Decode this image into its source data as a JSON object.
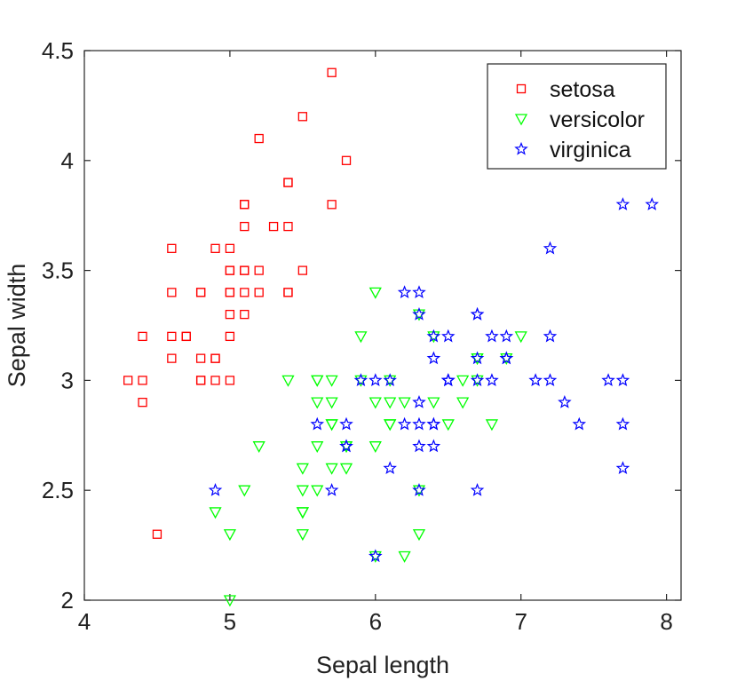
{
  "chart_data": {
    "type": "scatter",
    "title": "",
    "xlabel": "Sepal length",
    "ylabel": "Sepal width",
    "xlim": [
      4,
      8.1
    ],
    "ylim": [
      2,
      4.5
    ],
    "xticks": [
      4,
      5,
      6,
      7,
      8
    ],
    "yticks": [
      2,
      2.5,
      3,
      3.5,
      4,
      4.5
    ],
    "xtick_labels": [
      "4",
      "5",
      "6",
      "7",
      "8"
    ],
    "ytick_labels": [
      "2",
      "2.5",
      "3",
      "3.5",
      "4",
      "4.5"
    ],
    "grid": false,
    "legend_position": "top-right",
    "series": [
      {
        "name": "setosa",
        "marker": "square",
        "color": "#ff0000",
        "points": [
          [
            5.1,
            3.5
          ],
          [
            4.9,
            3.0
          ],
          [
            4.7,
            3.2
          ],
          [
            4.6,
            3.1
          ],
          [
            5.0,
            3.6
          ],
          [
            5.4,
            3.9
          ],
          [
            4.6,
            3.4
          ],
          [
            5.0,
            3.4
          ],
          [
            4.4,
            2.9
          ],
          [
            4.9,
            3.1
          ],
          [
            5.4,
            3.7
          ],
          [
            4.8,
            3.4
          ],
          [
            4.8,
            3.0
          ],
          [
            4.3,
            3.0
          ],
          [
            5.8,
            4.0
          ],
          [
            5.7,
            4.4
          ],
          [
            5.4,
            3.9
          ],
          [
            5.1,
            3.5
          ],
          [
            5.7,
            3.8
          ],
          [
            5.1,
            3.8
          ],
          [
            5.4,
            3.4
          ],
          [
            5.1,
            3.7
          ],
          [
            4.6,
            3.6
          ],
          [
            5.1,
            3.3
          ],
          [
            4.8,
            3.4
          ],
          [
            5.0,
            3.0
          ],
          [
            5.0,
            3.4
          ],
          [
            5.2,
            3.5
          ],
          [
            5.2,
            3.4
          ],
          [
            4.7,
            3.2
          ],
          [
            4.8,
            3.1
          ],
          [
            5.4,
            3.4
          ],
          [
            5.2,
            4.1
          ],
          [
            5.5,
            4.2
          ],
          [
            4.9,
            3.1
          ],
          [
            5.0,
            3.2
          ],
          [
            5.5,
            3.5
          ],
          [
            4.9,
            3.6
          ],
          [
            4.4,
            3.0
          ],
          [
            5.1,
            3.4
          ],
          [
            5.0,
            3.5
          ],
          [
            4.5,
            2.3
          ],
          [
            4.4,
            3.2
          ],
          [
            5.0,
            3.5
          ],
          [
            5.1,
            3.8
          ],
          [
            4.8,
            3.0
          ],
          [
            5.1,
            3.8
          ],
          [
            4.6,
            3.2
          ],
          [
            5.3,
            3.7
          ],
          [
            5.0,
            3.3
          ]
        ]
      },
      {
        "name": "versicolor",
        "marker": "triangle-down",
        "color": "#00ff00",
        "points": [
          [
            7.0,
            3.2
          ],
          [
            6.4,
            3.2
          ],
          [
            6.9,
            3.1
          ],
          [
            5.5,
            2.3
          ],
          [
            6.5,
            2.8
          ],
          [
            5.7,
            2.8
          ],
          [
            6.3,
            3.3
          ],
          [
            4.9,
            2.4
          ],
          [
            6.6,
            2.9
          ],
          [
            5.2,
            2.7
          ],
          [
            5.0,
            2.0
          ],
          [
            5.9,
            3.0
          ],
          [
            6.0,
            2.2
          ],
          [
            6.1,
            2.9
          ],
          [
            5.6,
            2.9
          ],
          [
            6.7,
            3.1
          ],
          [
            5.6,
            3.0
          ],
          [
            5.8,
            2.7
          ],
          [
            6.2,
            2.2
          ],
          [
            5.6,
            2.5
          ],
          [
            5.9,
            3.2
          ],
          [
            6.1,
            2.8
          ],
          [
            6.3,
            2.5
          ],
          [
            6.1,
            2.8
          ],
          [
            6.4,
            2.9
          ],
          [
            6.6,
            3.0
          ],
          [
            6.8,
            2.8
          ],
          [
            6.7,
            3.0
          ],
          [
            6.0,
            2.9
          ],
          [
            5.7,
            2.6
          ],
          [
            5.5,
            2.4
          ],
          [
            5.5,
            2.4
          ],
          [
            5.8,
            2.7
          ],
          [
            6.0,
            2.7
          ],
          [
            5.4,
            3.0
          ],
          [
            6.0,
            3.4
          ],
          [
            6.7,
            3.1
          ],
          [
            6.3,
            2.3
          ],
          [
            5.6,
            3.0
          ],
          [
            5.5,
            2.5
          ],
          [
            5.5,
            2.6
          ],
          [
            6.1,
            3.0
          ],
          [
            5.8,
            2.6
          ],
          [
            5.0,
            2.3
          ],
          [
            5.6,
            2.7
          ],
          [
            5.7,
            3.0
          ],
          [
            5.7,
            2.9
          ],
          [
            6.2,
            2.9
          ],
          [
            5.1,
            2.5
          ],
          [
            5.7,
            2.8
          ]
        ]
      },
      {
        "name": "virginica",
        "marker": "star",
        "color": "#0000ff",
        "points": [
          [
            6.3,
            3.3
          ],
          [
            5.8,
            2.7
          ],
          [
            7.1,
            3.0
          ],
          [
            6.3,
            2.9
          ],
          [
            6.5,
            3.0
          ],
          [
            7.6,
            3.0
          ],
          [
            4.9,
            2.5
          ],
          [
            7.3,
            2.9
          ],
          [
            6.7,
            2.5
          ],
          [
            7.2,
            3.6
          ],
          [
            6.5,
            3.2
          ],
          [
            6.4,
            2.7
          ],
          [
            6.8,
            3.0
          ],
          [
            5.7,
            2.5
          ],
          [
            5.8,
            2.8
          ],
          [
            6.4,
            3.2
          ],
          [
            6.5,
            3.0
          ],
          [
            7.7,
            3.8
          ],
          [
            7.7,
            2.6
          ],
          [
            6.0,
            2.2
          ],
          [
            6.9,
            3.2
          ],
          [
            5.6,
            2.8
          ],
          [
            7.7,
            2.8
          ],
          [
            6.3,
            2.7
          ],
          [
            6.7,
            3.3
          ],
          [
            7.2,
            3.2
          ],
          [
            6.2,
            2.8
          ],
          [
            6.1,
            3.0
          ],
          [
            6.4,
            2.8
          ],
          [
            7.2,
            3.0
          ],
          [
            7.4,
            2.8
          ],
          [
            7.9,
            3.8
          ],
          [
            6.4,
            2.8
          ],
          [
            6.3,
            2.8
          ],
          [
            6.1,
            2.6
          ],
          [
            7.7,
            3.0
          ],
          [
            6.3,
            3.4
          ],
          [
            6.4,
            3.1
          ],
          [
            6.0,
            3.0
          ],
          [
            6.9,
            3.1
          ],
          [
            6.7,
            3.1
          ],
          [
            6.9,
            3.1
          ],
          [
            5.8,
            2.7
          ],
          [
            6.8,
            3.2
          ],
          [
            6.7,
            3.3
          ],
          [
            6.7,
            3.0
          ],
          [
            6.3,
            2.5
          ],
          [
            6.5,
            3.0
          ],
          [
            6.2,
            3.4
          ],
          [
            5.9,
            3.0
          ]
        ]
      }
    ]
  }
}
